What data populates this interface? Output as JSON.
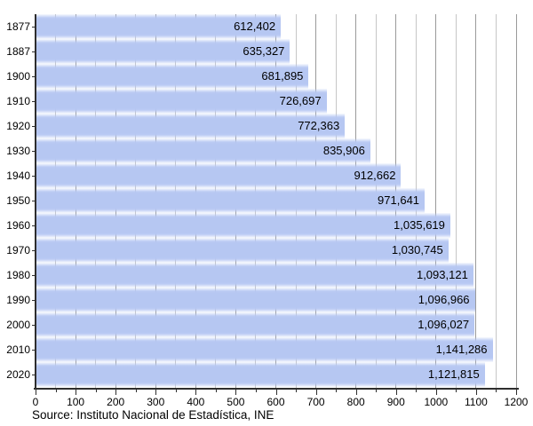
{
  "chart_data": {
    "type": "bar",
    "orientation": "horizontal",
    "title": "",
    "xlabel": "",
    "ylabel": "",
    "categories": [
      "1877",
      "1887",
      "1900",
      "1910",
      "1920",
      "1930",
      "1940",
      "1950",
      "1960",
      "1970",
      "1980",
      "1990",
      "2000",
      "2010",
      "2020"
    ],
    "values": [
      612402,
      635327,
      681895,
      726697,
      772363,
      835906,
      912662,
      971641,
      1035619,
      1030745,
      1093121,
      1096966,
      1096027,
      1141286,
      1121815
    ],
    "value_labels": [
      "612,402",
      "635,327",
      "681,895",
      "726,697",
      "772,363",
      "835,906",
      "912,662",
      "971,641",
      "1,035,619",
      "1,030,745",
      "1,093,121",
      "1,096,966",
      "1,096,027",
      "1,141,286",
      "1,121,815"
    ],
    "xlim": [
      0,
      1200
    ],
    "x_axis_unit": "thousands",
    "x_major_tick_interval": 100,
    "x_minor_tick_interval": 50,
    "x_tick_labels": [
      "0",
      "100",
      "200",
      "300",
      "400",
      "500",
      "600",
      "700",
      "800",
      "900",
      "1000",
      "1100",
      "1200"
    ],
    "grid": "vertical",
    "legend": false,
    "source": "Source: Instituto Nacional de Estadística, INE",
    "colors": {
      "bar": "#b6c7f2",
      "grid_major": "#9a9a9a",
      "grid_minor": "#c6c6c6",
      "axis": "#2e2e2e",
      "text": "#000000",
      "background": "#ffffff"
    }
  }
}
